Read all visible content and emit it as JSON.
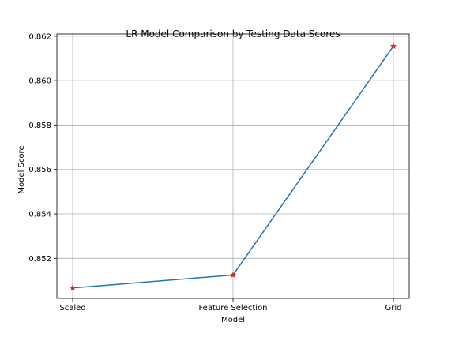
{
  "chart_data": {
    "type": "line",
    "title": "LR Model Comparison by Testing Data Scores",
    "xlabel": "Model",
    "ylabel": "Model Score",
    "categories": [
      "Scaled",
      "Feature Selection",
      "Grid"
    ],
    "series": [
      {
        "values": [
          0.85067,
          0.85125,
          0.86155
        ]
      }
    ],
    "ylim": [
      0.8502,
      0.8621
    ],
    "yticks": [
      0.852,
      0.854,
      0.856,
      0.858,
      0.86,
      0.862
    ],
    "ytick_labels": [
      "0.852",
      "0.854",
      "0.856",
      "0.858",
      "0.860",
      "0.862"
    ],
    "grid": true,
    "line_color": "#1f77b4",
    "marker": "star",
    "marker_color": "#d62728"
  }
}
